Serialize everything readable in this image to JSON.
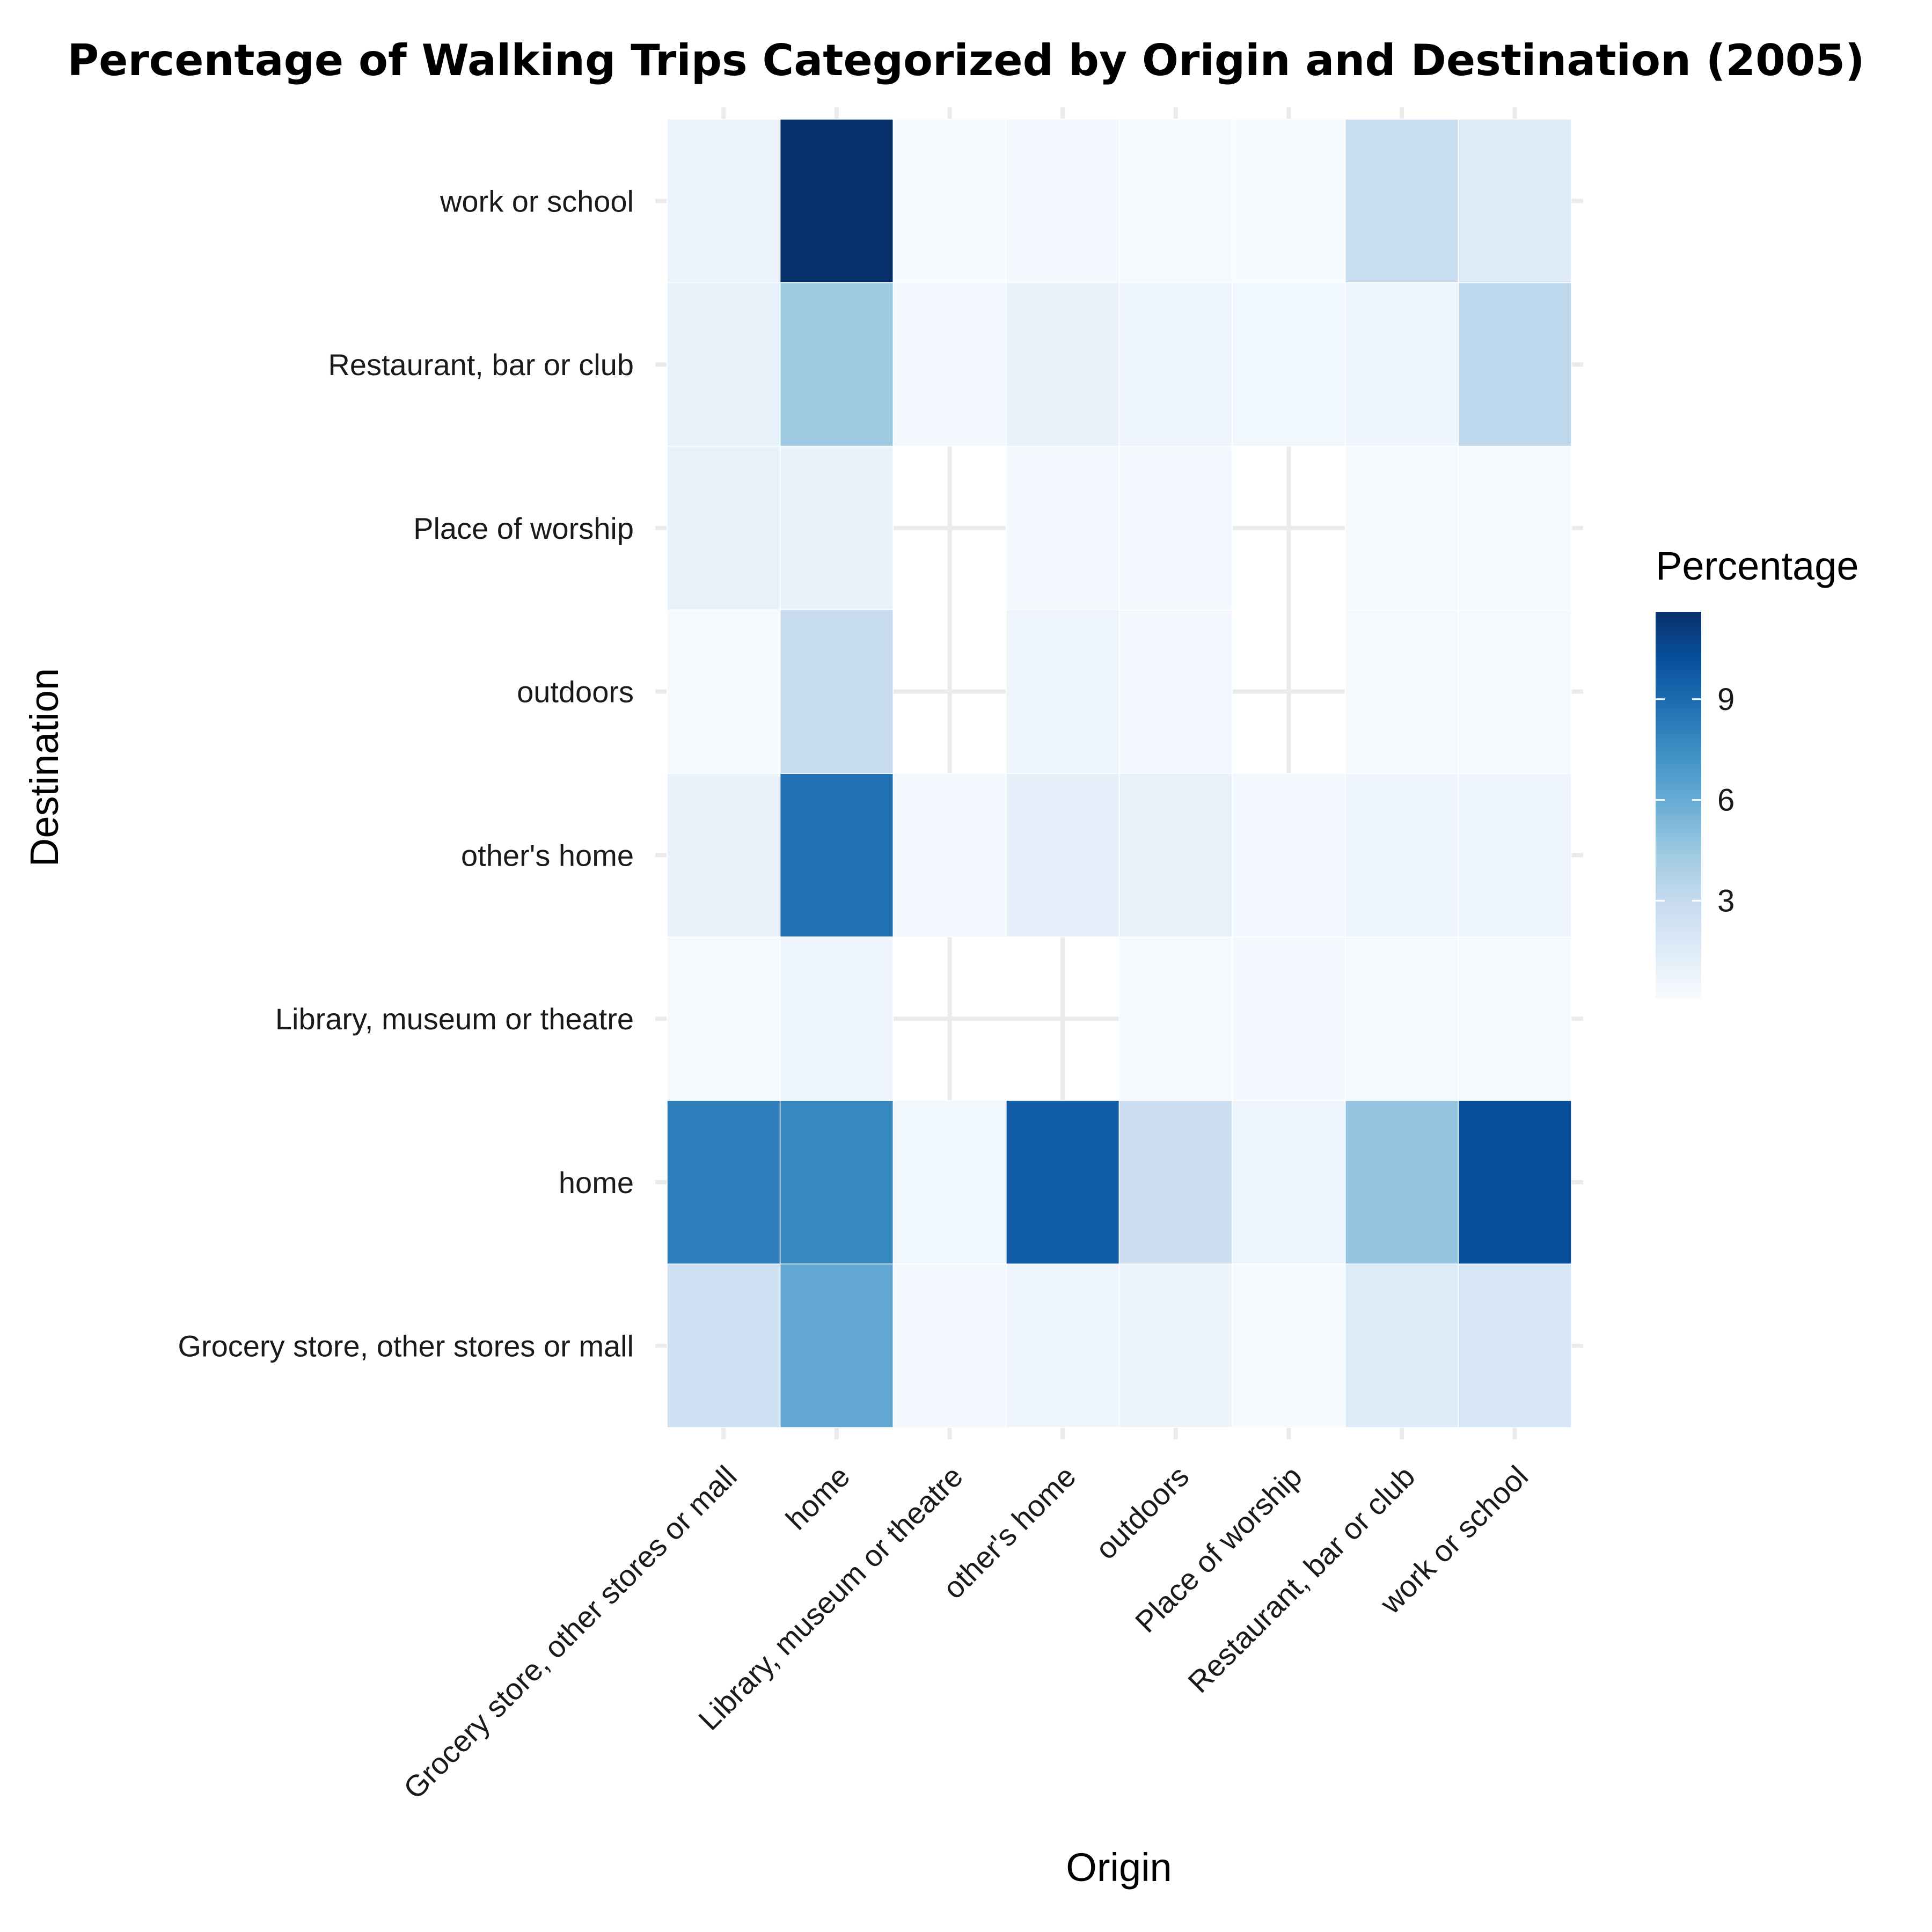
{
  "chart_data": {
    "type": "heatmap",
    "title": "Percentage of Walking Trips Categorized by Origin and Destination (2005)",
    "xlabel": "Origin",
    "ylabel": "Destination",
    "x_categories": [
      "Grocery store, other stores or mall",
      "home",
      "Library, museum or theatre",
      "other's home",
      "outdoors",
      "Place of worship",
      "Restaurant, bar or club",
      "work or school"
    ],
    "y_categories": [
      "Grocery store, other stores or mall",
      "home",
      "Library, museum or theatre",
      "other's home",
      "outdoors",
      "Place of worship",
      "Restaurant, bar or club",
      "work or school"
    ],
    "values": [
      [
        2.5,
        6.2,
        0.4,
        0.6,
        0.8,
        0.2,
        1.6,
        2.0
      ],
      [
        8.1,
        7.7,
        0.5,
        9.6,
        2.6,
        0.7,
        4.7,
        10.2
      ],
      [
        0.3,
        0.6,
        null,
        null,
        0.3,
        0.4,
        0.3,
        0.3
      ],
      [
        0.9,
        8.7,
        0.4,
        1.2,
        1.0,
        0.4,
        0.6,
        0.6
      ],
      [
        0.2,
        2.9,
        null,
        0.7,
        0.4,
        null,
        0.3,
        0.3
      ],
      [
        1.0,
        0.9,
        null,
        0.4,
        0.4,
        null,
        0.3,
        0.3
      ],
      [
        1.0,
        4.4,
        0.4,
        0.9,
        0.7,
        0.5,
        0.6,
        3.3
      ],
      [
        0.8,
        11.6,
        0.1,
        0.4,
        0.3,
        0.1,
        2.8,
        1.5
      ]
    ],
    "legend": {
      "title": "Percentage",
      "ticks": [
        3,
        6,
        9
      ],
      "range": [
        0.1,
        11.6
      ],
      "colors": [
        "#f7fbff",
        "#deebf7",
        "#c6dbef",
        "#9ecae1",
        "#6baed6",
        "#4292c6",
        "#2171b5",
        "#08519c",
        "#08306b"
      ],
      "placement": "right"
    },
    "grid": true
  }
}
